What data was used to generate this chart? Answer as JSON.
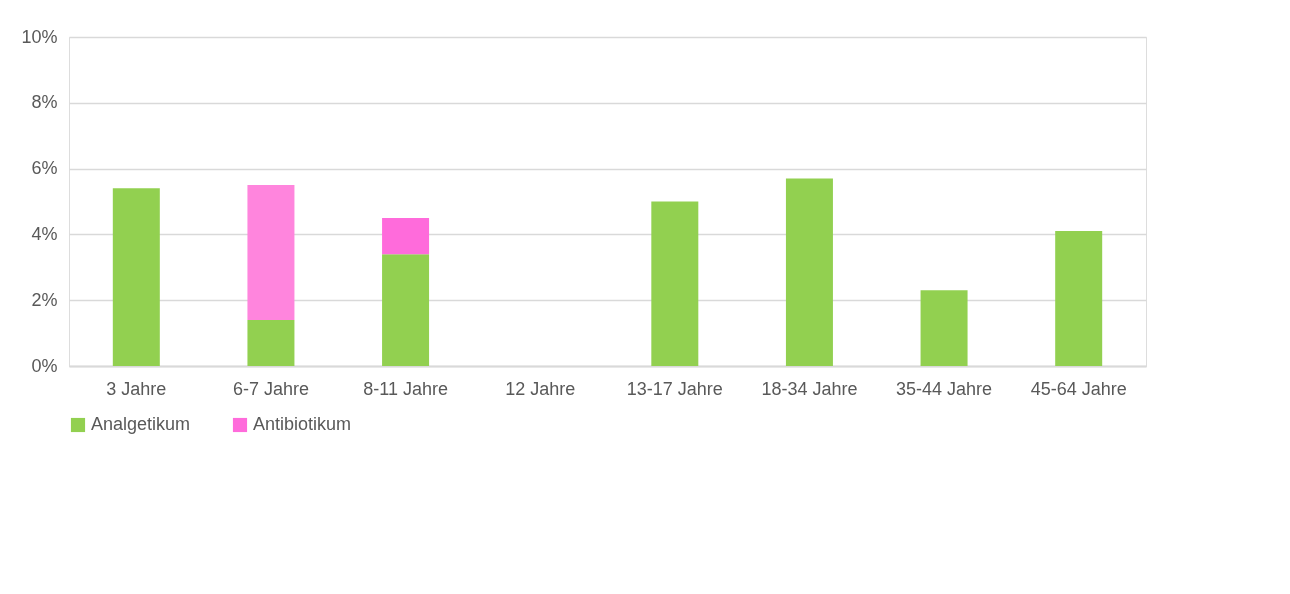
{
  "chart_data": {
    "type": "bar",
    "stacked": true,
    "categories": [
      "3 Jahre",
      "6-7 Jahre",
      "8-11 Jahre",
      "12 Jahre",
      "13-17 Jahre",
      "18-34 Jahre",
      "35-44 Jahre",
      "45-64 Jahre"
    ],
    "series": [
      {
        "name": "Analgetikum",
        "color": "#92d050",
        "values": [
          5.4,
          1.4,
          3.4,
          null,
          5.0,
          5.7,
          2.3,
          4.1
        ]
      },
      {
        "name": "Antibiotikum",
        "color": "#ff6bdb",
        "colors": [
          null,
          "#ff85dd",
          "#ff6bdb",
          null,
          null,
          null,
          null,
          null
        ],
        "values": [
          null,
          4.1,
          1.1,
          null,
          null,
          null,
          null,
          null
        ]
      }
    ],
    "ylim": [
      0,
      10
    ],
    "yticks": [
      {
        "value": 0,
        "label": "0%"
      },
      {
        "value": 2,
        "label": "2%"
      },
      {
        "value": 4,
        "label": "4%"
      },
      {
        "value": 6,
        "label": "6%"
      },
      {
        "value": 8,
        "label": "8%"
      },
      {
        "value": 10,
        "label": "10%"
      }
    ],
    "grid": "y",
    "legend": "bottom"
  }
}
